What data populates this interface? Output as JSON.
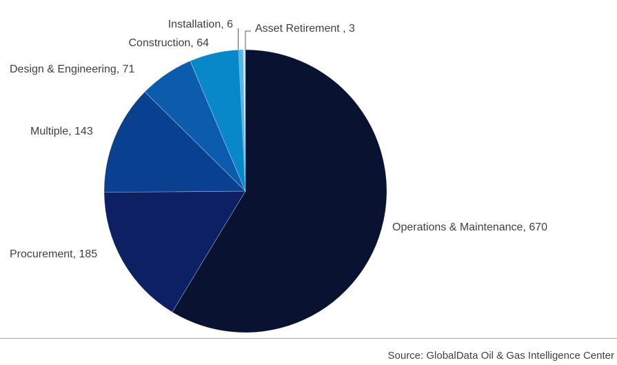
{
  "chart_data": {
    "type": "pie",
    "title": "",
    "legend_position": "none",
    "data_labels": "outside",
    "start_angle_deg": 0,
    "direction": "clockwise",
    "slices": [
      {
        "name": "Operations & Maintenance",
        "value": 670,
        "label_text": "Operations & Maintenance, 670",
        "color": "#0a1232"
      },
      {
        "name": "Procurement",
        "value": 185,
        "label_text": "Procurement, 185",
        "color": "#0c2063"
      },
      {
        "name": "Multiple",
        "value": 143,
        "label_text": "Multiple, 143",
        "color": "#09408f"
      },
      {
        "name": "Design & Engineering",
        "value": 71,
        "label_text": "Design & Engineering, 71",
        "color": "#0c5cad"
      },
      {
        "name": "Construction",
        "value": 64,
        "label_text": "Construction, 64",
        "color": "#0988c9"
      },
      {
        "name": "Installation",
        "value": 6,
        "label_text": "Installation, 6",
        "color": "#5bb5e2"
      },
      {
        "name": "Asset Retirement",
        "value": 3,
        "label_text": "Asset Retirement , 3",
        "color": "#c9e3f3"
      }
    ]
  },
  "footer": {
    "source_text": "Source: GlobalData Oil & Gas Intelligence Center",
    "divider_color": "#a6a6a6"
  },
  "style": {
    "label_color": "#3f3f3f",
    "leader_line_color": "#595959"
  }
}
